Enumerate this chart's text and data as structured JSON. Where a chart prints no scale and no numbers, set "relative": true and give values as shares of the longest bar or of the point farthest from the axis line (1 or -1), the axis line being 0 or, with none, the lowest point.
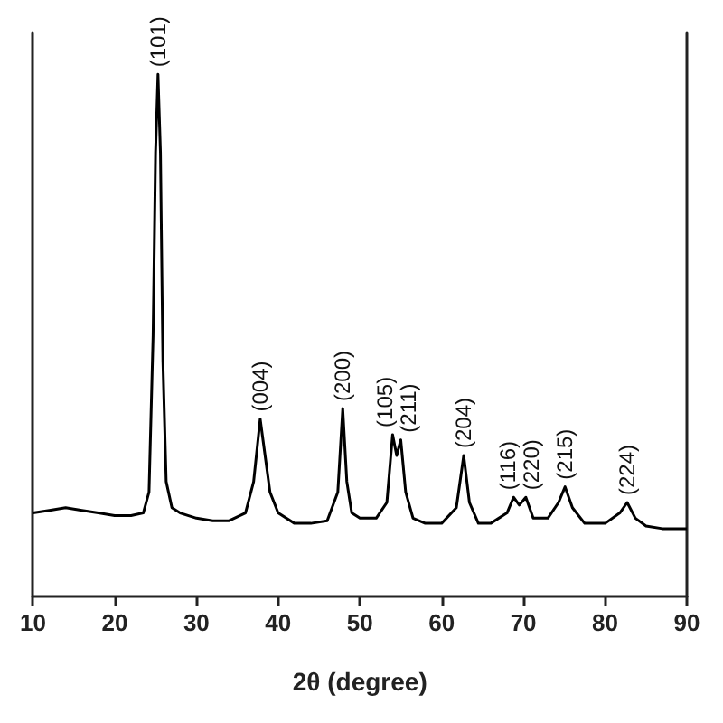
{
  "chart_data": {
    "type": "line",
    "relative": true,
    "xlabel": "2θ (degree)",
    "xlim": [
      10,
      90
    ],
    "xticks": [
      10,
      20,
      30,
      40,
      50,
      60,
      70,
      80,
      90
    ],
    "grid": false,
    "marker": "none",
    "line_style": "solid",
    "series": [
      {
        "color": "#000000",
        "x": [
          10,
          12,
          14,
          16,
          18,
          20,
          22,
          23.5,
          24.2,
          24.7,
          25.0,
          25.3,
          25.6,
          25.9,
          26.3,
          27,
          28,
          30,
          32,
          34,
          36,
          37,
          37.8,
          38.4,
          39,
          40,
          42,
          44,
          46,
          47.3,
          47.9,
          48.4,
          49,
          50,
          52,
          53.3,
          54.0,
          54.5,
          55.0,
          55.6,
          56.5,
          58,
          60,
          61.8,
          62.7,
          63.4,
          64.5,
          66,
          68,
          68.8,
          69.5,
          70.3,
          71.2,
          73,
          74.3,
          75.1,
          76,
          77.5,
          80,
          81.8,
          82.7,
          83.7,
          85,
          87,
          90
        ],
        "values": [
          0.16,
          0.165,
          0.17,
          0.165,
          0.16,
          0.155,
          0.155,
          0.16,
          0.2,
          0.5,
          0.85,
          1.0,
          0.85,
          0.45,
          0.22,
          0.17,
          0.16,
          0.15,
          0.145,
          0.145,
          0.16,
          0.22,
          0.34,
          0.27,
          0.2,
          0.16,
          0.14,
          0.14,
          0.145,
          0.2,
          0.36,
          0.22,
          0.16,
          0.15,
          0.15,
          0.18,
          0.31,
          0.27,
          0.3,
          0.2,
          0.15,
          0.14,
          0.14,
          0.17,
          0.27,
          0.18,
          0.14,
          0.14,
          0.16,
          0.19,
          0.175,
          0.19,
          0.15,
          0.15,
          0.18,
          0.21,
          0.17,
          0.14,
          0.14,
          0.16,
          0.18,
          0.15,
          0.135,
          0.13,
          0.13
        ]
      }
    ],
    "annotations": [
      {
        "text": "(101)",
        "x": 25.3,
        "y": 1.0
      },
      {
        "text": "(004)",
        "x": 37.8,
        "y": 0.34
      },
      {
        "text": "(200)",
        "x": 47.9,
        "y": 0.36
      },
      {
        "text": "(105)",
        "x": 54.0,
        "y": 0.31
      },
      {
        "text": "(211)",
        "x": 55.0,
        "y": 0.3
      },
      {
        "text": "(204)",
        "x": 62.7,
        "y": 0.27
      },
      {
        "text": "(116)",
        "x": 68.8,
        "y": 0.19
      },
      {
        "text": "(220)",
        "x": 70.3,
        "y": 0.19
      },
      {
        "text": "(215)",
        "x": 75.1,
        "y": 0.21
      },
      {
        "text": "(224)",
        "x": 82.7,
        "y": 0.18
      }
    ]
  }
}
